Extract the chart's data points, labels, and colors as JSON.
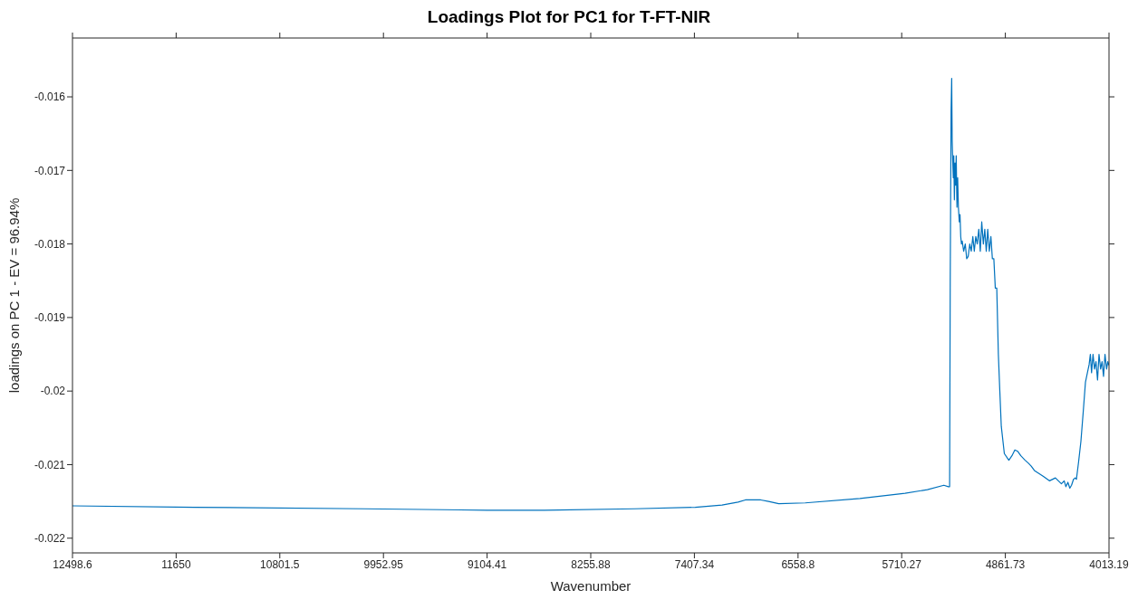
{
  "chart_data": {
    "type": "line",
    "title": "Loadings Plot for PC1 for T-FT-NIR",
    "xlabel": "Wavenumber",
    "ylabel": "loadings on PC 1 - EV = 96.94%",
    "x": [
      12498.6,
      11500,
      10113,
      9104,
      8636,
      7898,
      7400,
      7181,
      7050,
      6990,
      6864,
      6800,
      6717,
      6500,
      6052,
      5683,
      5500,
      5365,
      5328,
      5318,
      5313,
      5306,
      5301,
      5297,
      5293,
      5288,
      5284,
      5279,
      5274,
      5269,
      5264,
      5258,
      5252,
      5246,
      5239,
      5233,
      5227,
      5221,
      5215,
      5203,
      5190,
      5178,
      5166,
      5153,
      5141,
      5128,
      5116,
      5104,
      5092,
      5079,
      5067,
      5055,
      5042,
      5030,
      5018,
      5006,
      4993,
      4980,
      4968,
      4956,
      4944,
      4932,
      4919,
      4907,
      4895,
      4870,
      4833,
      4808,
      4784,
      4760,
      4735,
      4700,
      4673,
      4650,
      4624,
      4587,
      4550,
      4501,
      4452,
      4403,
      4380,
      4366,
      4350,
      4334,
      4320,
      4304,
      4290,
      4280,
      4262,
      4243,
      4225,
      4206,
      4190,
      4176,
      4166,
      4156,
      4144,
      4132,
      4120,
      4107,
      4095,
      4082,
      4070,
      4058,
      4046,
      4033,
      4023,
      4013.19
    ],
    "values": [
      -0.02156,
      -0.02158,
      -0.0216,
      -0.02162,
      -0.02162,
      -0.0216,
      -0.02158,
      -0.02155,
      -0.02151,
      -0.02148,
      -0.02148,
      -0.0215,
      -0.02153,
      -0.02152,
      -0.02146,
      -0.02139,
      -0.02134,
      -0.02128,
      -0.0213,
      -0.0213,
      -0.0185,
      -0.0162,
      -0.01575,
      -0.0166,
      -0.01685,
      -0.0171,
      -0.0168,
      -0.0174,
      -0.0169,
      -0.0172,
      -0.0168,
      -0.0175,
      -0.0171,
      -0.0175,
      -0.0177,
      -0.0176,
      -0.0179,
      -0.018,
      -0.01796,
      -0.0181,
      -0.018,
      -0.0182,
      -0.01817,
      -0.018,
      -0.0181,
      -0.0179,
      -0.0181,
      -0.0179,
      -0.018,
      -0.0178,
      -0.0181,
      -0.0177,
      -0.018,
      -0.0178,
      -0.0181,
      -0.0178,
      -0.0181,
      -0.0179,
      -0.0182,
      -0.0182,
      -0.0186,
      -0.0186,
      -0.0195,
      -0.02,
      -0.02048,
      -0.02085,
      -0.02094,
      -0.02088,
      -0.0208,
      -0.02082,
      -0.02088,
      -0.02094,
      -0.02098,
      -0.02102,
      -0.02108,
      -0.02112,
      -0.02116,
      -0.02122,
      -0.02118,
      -0.02126,
      -0.02122,
      -0.0213,
      -0.02124,
      -0.02132,
      -0.02128,
      -0.0212,
      -0.02118,
      -0.0212,
      -0.02096,
      -0.02068,
      -0.0203,
      -0.01988,
      -0.01975,
      -0.01964,
      -0.0195,
      -0.01975,
      -0.0195,
      -0.0197,
      -0.0196,
      -0.01985,
      -0.0195,
      -0.0197,
      -0.0196,
      -0.0198,
      -0.0195,
      -0.0197,
      -0.0196,
      -0.01965
    ],
    "color": "#0072bd",
    "line_style": "solid",
    "marker": "none",
    "grid": false,
    "legend": false,
    "xlim": [
      12498.6,
      4013.19
    ],
    "xticks": [
      12498.6,
      11650,
      10801.5,
      9952.95,
      9104.41,
      8255.88,
      7407.34,
      6558.8,
      5710.27,
      4861.73,
      4013.19
    ],
    "ylim": [
      -0.0222,
      -0.0152
    ],
    "yticks": [
      -0.022,
      -0.021,
      -0.02,
      -0.019,
      -0.018,
      -0.017,
      -0.016
    ]
  }
}
